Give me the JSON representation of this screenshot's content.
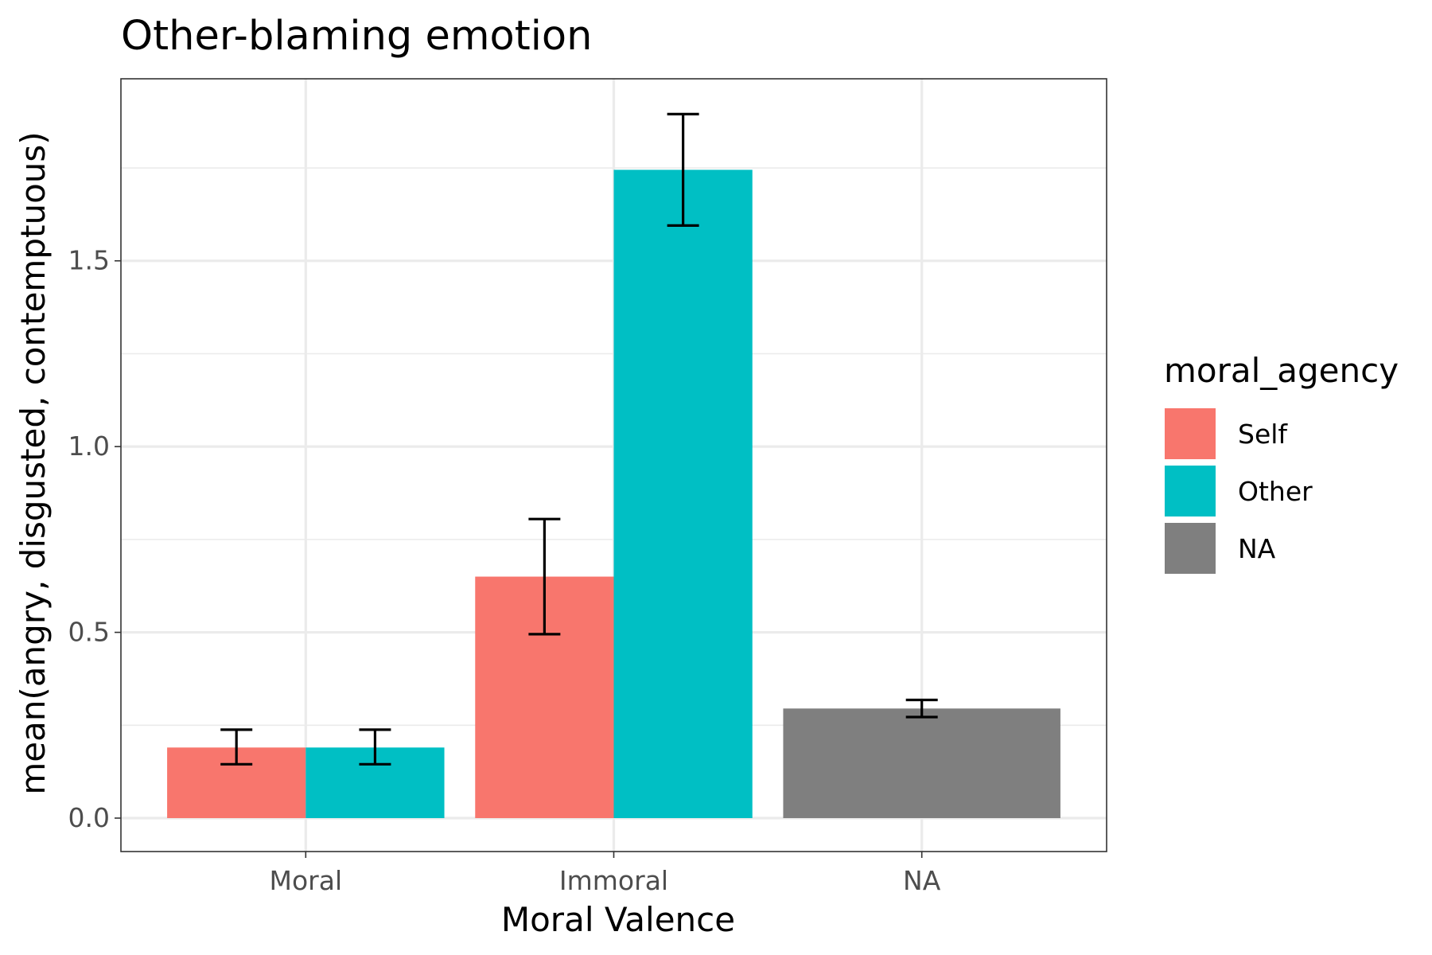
{
  "chart_data": {
    "type": "bar",
    "title": "Other-blaming emotion",
    "xlabel": "Moral Valence",
    "ylabel": "mean(angry, disgusted, contemptuous)",
    "categories": [
      "Moral",
      "Immoral",
      "NA"
    ],
    "yticks": [
      "0.0",
      "0.5",
      "1.0",
      "1.5"
    ],
    "ylim": [
      -0.09,
      1.99
    ],
    "grid": true,
    "legend": {
      "title": "moral_agency",
      "position": "right",
      "entries": [
        {
          "label": "Self",
          "color": "#F8766D"
        },
        {
          "label": "Other",
          "color": "#00BFC4"
        },
        {
          "label": "NA",
          "color": "#7F7F7F"
        }
      ]
    },
    "series": [
      {
        "name": "Self",
        "color": "#F8766D",
        "values": [
          0.19,
          0.65,
          null
        ],
        "error_low": [
          0.145,
          0.495,
          null
        ],
        "error_high": [
          0.238,
          0.805,
          null
        ]
      },
      {
        "name": "Other",
        "color": "#00BFC4",
        "values": [
          0.19,
          1.745,
          null
        ],
        "error_low": [
          0.145,
          1.595,
          null
        ],
        "error_high": [
          0.238,
          1.895,
          null
        ]
      },
      {
        "name": "NA",
        "color": "#7F7F7F",
        "values": [
          null,
          null,
          0.295
        ],
        "error_low": [
          null,
          null,
          0.272
        ],
        "error_high": [
          null,
          null,
          0.318
        ]
      }
    ]
  }
}
